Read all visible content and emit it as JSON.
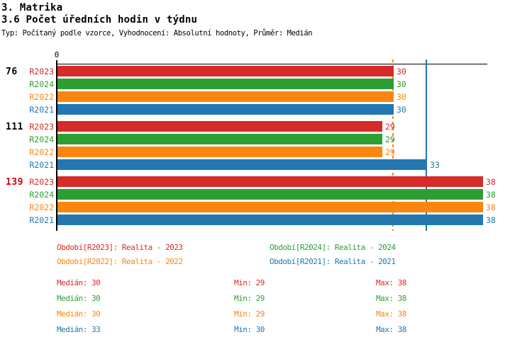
{
  "header": {
    "title": "3. Matrika",
    "subtitle": "3.6 Počet úředních hodin v týdnu",
    "meta": "Typ: Počítaný podle vzorce, Vyhodnocení: Absolutní hodnoty, Průměr: Medián"
  },
  "colors": {
    "red": "#d62b28",
    "green": "#2e9e33",
    "orange": "#fb860f",
    "blue": "#2277b0",
    "black": "#000000",
    "group_alert_red": "#cc0000"
  },
  "chart_data": {
    "type": "bar",
    "orientation": "horizontal",
    "title": "3.6 Počet úředních hodin v týdnu",
    "x_axis": {
      "min": 0,
      "origin_tick_label": "0",
      "grid": false
    },
    "categories": [
      "76",
      "111",
      "139"
    ],
    "category_label_colors": [
      "black",
      "black",
      "group_alert_red"
    ],
    "series": [
      {
        "name": "R2023",
        "color_key": "red",
        "values": [
          30,
          29,
          38
        ]
      },
      {
        "name": "R2024",
        "color_key": "green",
        "values": [
          30,
          29,
          38
        ]
      },
      {
        "name": "R2022",
        "color_key": "orange",
        "values": [
          30,
          29,
          38
        ]
      },
      {
        "name": "R2021",
        "color_key": "blue",
        "values": [
          30,
          33,
          38
        ]
      }
    ],
    "bar_value_labels_shown": true,
    "reference_lines": [
      {
        "value": 30,
        "color_key": "orange",
        "style": "dashed"
      },
      {
        "value": 33,
        "color_key": "blue",
        "style": "solid"
      }
    ]
  },
  "legend": {
    "items": [
      {
        "label": "Období[R2023]: Realita - 2023",
        "color_key": "red",
        "row": 0,
        "col": 0
      },
      {
        "label": "Období[R2024]: Realita - 2024",
        "color_key": "green",
        "row": 0,
        "col": 1
      },
      {
        "label": "Období[R2022]: Realita - 2022",
        "color_key": "orange",
        "row": 1,
        "col": 0
      },
      {
        "label": "Období[R2021]: Realita - 2021",
        "color_key": "blue",
        "row": 1,
        "col": 1
      }
    ]
  },
  "stats": {
    "labels": {
      "median": "Medián",
      "min": "Min",
      "max": "Max"
    },
    "rows": [
      {
        "color_key": "red",
        "median": "30",
        "min": "29",
        "max": "38"
      },
      {
        "color_key": "green",
        "median": "30",
        "min": "29",
        "max": "38"
      },
      {
        "color_key": "orange",
        "median": "30",
        "min": "29",
        "max": "38"
      },
      {
        "color_key": "blue",
        "median": "33",
        "min": "30",
        "max": "38"
      }
    ]
  }
}
